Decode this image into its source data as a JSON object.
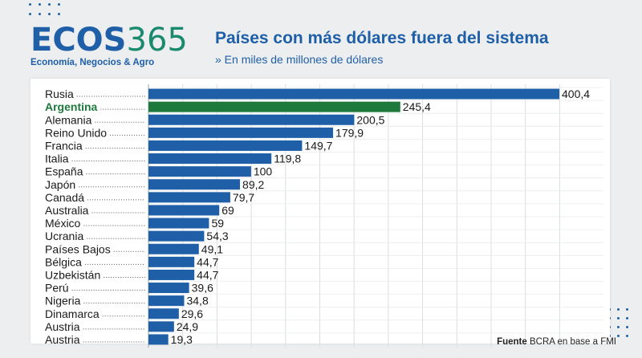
{
  "brand": {
    "logo_word": "ECOS",
    "logo_number": "365",
    "tagline": "Economía, Negocios & Agro"
  },
  "header": {
    "title": "Países con más dólares fuera del sistema",
    "subtitle": "» En miles de millones de dólares"
  },
  "source": {
    "label": "Fuente",
    "text": "BCRA en base a FMI"
  },
  "colors": {
    "bar_default": "#1f5fa8",
    "bar_highlight": "#1e7a3c",
    "brand_blue": "#1f5fa8",
    "brand_green": "#1a8a6e",
    "highlight_text": "#1e7a3c"
  },
  "chart_data": {
    "type": "bar",
    "orientation": "horizontal",
    "title": "Países con más dólares fuera del sistema",
    "subtitle": "» En miles de millones de dólares",
    "categories": [
      "Rusia",
      "Argentina",
      "Alemania",
      "Reino Unido",
      "Francia",
      "Italia",
      "España",
      "Japón",
      "Canadá",
      "Australia",
      "México",
      "Ucrania",
      "Países Bajos",
      "Bélgica",
      "Uzbekistán",
      "Perú",
      "Nigeria",
      "Dinamarca",
      "Austria",
      "Austria"
    ],
    "values": [
      400.4,
      245.4,
      200.5,
      179.9,
      149.7,
      119.8,
      100,
      89.2,
      79.7,
      69,
      59,
      54.3,
      49.1,
      44.7,
      44.7,
      39.6,
      34.8,
      29.6,
      24.9,
      19.3
    ],
    "value_labels": [
      "400,4",
      "245,4",
      "200,5",
      "179,9",
      "149,7",
      "119,8",
      "100",
      "89,2",
      "79,7",
      "69",
      "59",
      "54,3",
      "49,1",
      "44,7",
      "44,7",
      "39,6",
      "34,8",
      "29,6",
      "24,9",
      "19,3"
    ],
    "highlight": "Argentina",
    "xlim": [
      0,
      400.4
    ],
    "grid": true,
    "legend": "none",
    "xlabel": "",
    "ylabel": ""
  }
}
